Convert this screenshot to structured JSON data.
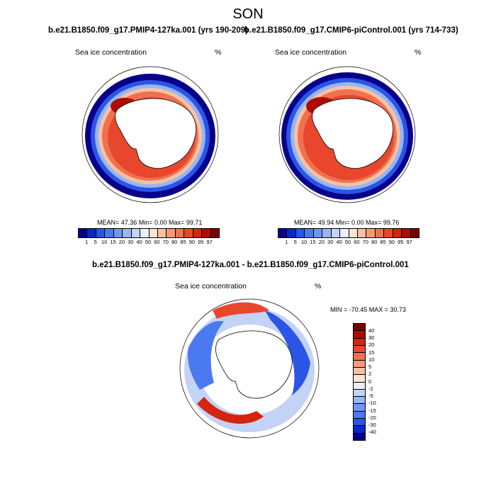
{
  "season": "SON",
  "panels": [
    {
      "title": "b.e21.B1850.f09_g17.PMIP4-127ka.001 (yrs 190-209)",
      "variable": "Sea ice concentration",
      "units": "%",
      "stats": "MEAN= 47.36  Min=  0.00  Max= 99.71"
    },
    {
      "title": "b.e21.B1850.f09_g17.CMIP6-piControl.001 (yrs 714-733)",
      "variable": "Sea ice concentration",
      "units": "%",
      "stats": "MEAN= 49.94  Min=  0.00  Max= 99.76"
    }
  ],
  "diff_panel": {
    "title": "b.e21.B1850.f09_g17.PMIP4-127ka.001 - b.e21.B1850.f09_g17.CMIP6-piControl.001",
    "variable": "Sea ice concentration",
    "units": "%",
    "stats": "MIN = -70.45 MAX =  30.73"
  },
  "colorbar": {
    "labels": [
      "1",
      "5",
      "10",
      "15",
      "20",
      "30",
      "40",
      "50",
      "60",
      "70",
      "80",
      "85",
      "90",
      "95",
      "97"
    ],
    "colors": [
      "#08008a",
      "#0a28c8",
      "#2a55e6",
      "#4b79f0",
      "#7297f2",
      "#98b5f4",
      "#c2d3f6",
      "#e9eef8",
      "#fbe4d6",
      "#f8c1a4",
      "#f59978",
      "#f0714f",
      "#e8472c",
      "#d4250f",
      "#b00c05",
      "#7a0000"
    ]
  },
  "diff_colorbar": {
    "labels": [
      "40",
      "30",
      "20",
      "15",
      "10",
      "5",
      "2",
      "0",
      "-2",
      "-5",
      "-10",
      "-15",
      "-20",
      "-30",
      "-40"
    ],
    "colors": [
      "#7a0000",
      "#b00c05",
      "#d4250f",
      "#e8472c",
      "#f0714f",
      "#f59978",
      "#f8c1a4",
      "#fbe4d6",
      "#e9eef8",
      "#c2d3f6",
      "#98b5f4",
      "#7297f2",
      "#4b79f0",
      "#2a55e6",
      "#0a28c8",
      "#08008a"
    ]
  }
}
